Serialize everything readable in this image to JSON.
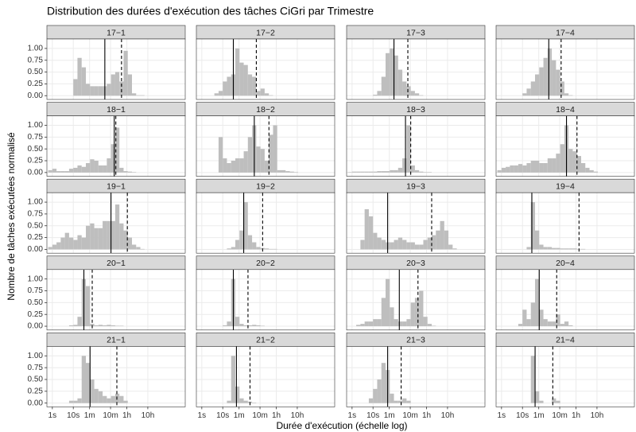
{
  "title": "Distribution des durées d'exécution des tâches CiGri par Trimestre",
  "x_label": "Durée d'exécution (échelle log)",
  "y_label": "Nombre de tâches exécutées normalisé",
  "chart_data": {
    "type": "histogram",
    "xscale": "log",
    "grid": true,
    "color": "#bebebe",
    "xlim": [
      0.55,
      2200000
    ],
    "ylim": [
      -0.08,
      1.2
    ],
    "xticks": [
      {
        "value": 1,
        "label": "1s"
      },
      {
        "value": 10,
        "label": "10s"
      },
      {
        "value": 60,
        "label": "1m"
      },
      {
        "value": 600,
        "label": "10m"
      },
      {
        "value": 3600,
        "label": "1h"
      },
      {
        "value": 36000,
        "label": "10h"
      }
    ],
    "yticks": [
      {
        "value": 0,
        "label": "0.00"
      },
      0.25,
      {
        "value": 0.5,
        "label": "0.50"
      },
      0.75,
      {
        "value": 1,
        "label": "1.00"
      }
    ],
    "bins": [
      0.63,
      1,
      1.58,
      2.51,
      3.98,
      6.31,
      10,
      15.8,
      25.1,
      39.8,
      63.1,
      100,
      158,
      251,
      398,
      631,
      1000,
      1585,
      2512,
      3981,
      6310,
      10000,
      15849,
      25119,
      39811,
      63096,
      100000,
      158489,
      251189,
      398107,
      630957
    ],
    "facets": [
      {
        "title": "17−1",
        "median": 320,
        "mean": 2000,
        "values": [
          0,
          0,
          0,
          0,
          0,
          0,
          0.35,
          0.8,
          0.6,
          0.25,
          0.2,
          0.2,
          0.2,
          0.2,
          0.25,
          0.45,
          0.5,
          0.3,
          0.95,
          0.45,
          0.05,
          0.01,
          0.01,
          0,
          0,
          0,
          0,
          0,
          0,
          0
        ]
      },
      {
        "title": "17−2",
        "median": 32,
        "mean": 400,
        "values": [
          0,
          0,
          0,
          0,
          0.05,
          0.1,
          0.3,
          0.4,
          0.45,
          1,
          0.7,
          0.65,
          0.45,
          0.4,
          0.1,
          0.15,
          0.05,
          0.01,
          0,
          0,
          0,
          0,
          0,
          0,
          0,
          0,
          0,
          0,
          0,
          0
        ]
      },
      {
        "title": "17−3",
        "median": 100,
        "mean": 460,
        "values": [
          0,
          0,
          0,
          0,
          0,
          0,
          0.02,
          0.1,
          0.4,
          0.9,
          1,
          0.85,
          0.55,
          0.3,
          0.2,
          0.1,
          0.05,
          0.01,
          0,
          0,
          0,
          0,
          0,
          0,
          0,
          0,
          0,
          0,
          0,
          0
        ]
      },
      {
        "title": "17−4",
        "median": 180,
        "mean": 700,
        "values": [
          0,
          0,
          0,
          0,
          0,
          0,
          0.05,
          0.15,
          0.3,
          0.45,
          0.6,
          0.8,
          1,
          0.75,
          0.55,
          0.3,
          0.05,
          0.01,
          0,
          0,
          0,
          0,
          0,
          0,
          0,
          0,
          0,
          0,
          0,
          0
        ]
      },
      {
        "title": "18−1",
        "median": 900,
        "mean": 1070,
        "values": [
          0.05,
          0.08,
          0.03,
          0.03,
          0.03,
          0.08,
          0.1,
          0.15,
          0.12,
          0.2,
          0.28,
          0.25,
          0.15,
          0.15,
          0.3,
          0.6,
          0.95,
          0.1,
          0.03,
          0.02,
          0.01,
          0,
          0,
          0,
          0,
          0,
          0,
          0,
          0,
          0
        ]
      },
      {
        "title": "18−2",
        "median": 320,
        "mean": 1600,
        "values": [
          0,
          0,
          0,
          0,
          0,
          0.75,
          0.3,
          0.2,
          0.25,
          0.3,
          0.3,
          0.45,
          0.75,
          1,
          0.55,
          0.5,
          0.25,
          0.8,
          1,
          0.05,
          0.05,
          0.03,
          0.02,
          0.01,
          0,
          0,
          0,
          0,
          0,
          0
        ]
      },
      {
        "title": "18−3",
        "median": 355,
        "mean": 630,
        "values": [
          0.01,
          0.02,
          0.02,
          0.02,
          0.02,
          0.02,
          0.02,
          0.03,
          0.03,
          0.03,
          0.05,
          0.05,
          0.1,
          0.3,
          1,
          0.15,
          0.05,
          0.02,
          0.01,
          0.01,
          0,
          0,
          0,
          0,
          0,
          0,
          0,
          0,
          0,
          0
        ]
      },
      {
        "title": "18−4",
        "median": 1260,
        "mean": 4000,
        "values": [
          0.05,
          0.1,
          0.12,
          0.15,
          0.15,
          0.18,
          0.15,
          0.2,
          0.25,
          0.25,
          0.2,
          0.2,
          0.3,
          0.3,
          0.4,
          0.6,
          1,
          0.5,
          0.45,
          0.35,
          0.2,
          0.1,
          0.05,
          0.02,
          0,
          0,
          0,
          0,
          0,
          0
        ]
      },
      {
        "title": "19−1",
        "median": 630,
        "mean": 3800,
        "values": [
          0.05,
          0.1,
          0.15,
          0.25,
          0.35,
          0.25,
          0.2,
          0.3,
          0.25,
          0.5,
          0.55,
          0.45,
          0.45,
          0.6,
          0.6,
          0.6,
          0.95,
          0.55,
          0.4,
          0.25,
          0.1,
          0.05,
          0.01,
          0,
          0,
          0,
          0,
          0,
          0,
          0
        ]
      },
      {
        "title": "19−2",
        "median": 100,
        "mean": 800,
        "values": [
          0,
          0,
          0,
          0,
          0,
          0,
          0,
          0.02,
          0.05,
          0.2,
          0.4,
          1,
          0.3,
          0.15,
          0.05,
          0.03,
          0.02,
          0.01,
          0.01,
          0,
          0,
          0,
          0,
          0,
          0,
          0,
          0,
          0,
          0,
          0
        ]
      },
      {
        "title": "19−3",
        "median": 50,
        "mean": 6300,
        "values": [
          0,
          0,
          0,
          0.2,
          0.85,
          0.7,
          0.35,
          0.25,
          0.2,
          0.15,
          0.15,
          0.2,
          0.25,
          0.2,
          0.15,
          0.15,
          0.1,
          0.1,
          0.2,
          0.25,
          0.3,
          0.4,
          0.6,
          0.4,
          0.1,
          0.02,
          0,
          0,
          0,
          0
        ]
      },
      {
        "title": "19−4",
        "median": 28,
        "mean": 5000,
        "values": [
          0,
          0,
          0,
          0,
          0,
          0,
          0,
          0.05,
          1,
          0.4,
          0.1,
          0.05,
          0.05,
          0.03,
          0.03,
          0.02,
          0.02,
          0.02,
          0.02,
          0.01,
          0.01,
          0,
          0,
          0,
          0,
          0,
          0,
          0,
          0,
          0
        ]
      },
      {
        "title": "20−1",
        "median": 32,
        "mean": 80,
        "values": [
          0,
          0,
          0,
          0,
          0,
          0.02,
          0.03,
          0.2,
          1,
          0.85,
          0.05,
          0.02,
          0.03,
          0.02,
          0.03,
          0.02,
          0.01,
          0.01,
          0,
          0,
          0,
          0,
          0,
          0,
          0,
          0,
          0,
          0,
          0,
          0
        ]
      },
      {
        "title": "20−2",
        "median": 32,
        "mean": 160,
        "values": [
          0,
          0,
          0,
          0,
          0,
          0,
          0.02,
          0.1,
          1,
          0.2,
          0.05,
          0.02,
          0.02,
          0.03,
          0.02,
          0.01,
          0,
          0,
          0,
          0,
          0,
          0,
          0,
          0,
          0,
          0,
          0,
          0,
          0,
          0
        ]
      },
      {
        "title": "20−3",
        "median": 180,
        "mean": 1400,
        "values": [
          0,
          0,
          0.03,
          0.05,
          0.1,
          0.1,
          0.15,
          0.15,
          0.6,
          1,
          0.4,
          0.15,
          0.1,
          0.1,
          0.15,
          0.5,
          0.6,
          0.75,
          0.2,
          0.05,
          0.01,
          0,
          0,
          0,
          0,
          0,
          0,
          0,
          0,
          0
        ]
      },
      {
        "title": "20−4",
        "median": 63,
        "mean": 430,
        "values": [
          0,
          0,
          0,
          0,
          0,
          0.05,
          0.35,
          0.15,
          0.5,
          1,
          0.35,
          0.15,
          0.1,
          0.1,
          0.25,
          0.05,
          0.1,
          0.02,
          0,
          0,
          0,
          0,
          0,
          0,
          0,
          0,
          0,
          0,
          0,
          0
        ]
      },
      {
        "title": "21−1",
        "median": 63,
        "mean": 1200,
        "values": [
          0,
          0,
          0,
          0,
          0,
          0.05,
          0.05,
          0.1,
          1,
          0.85,
          0.5,
          0.3,
          0.25,
          0.15,
          0.1,
          0.15,
          0.2,
          0.15,
          0.05,
          0,
          0,
          0,
          0,
          0,
          0,
          0,
          0,
          0,
          0,
          0
        ]
      },
      {
        "title": "21−2",
        "median": 45,
        "mean": 200,
        "values": [
          0,
          0,
          0,
          0,
          0,
          0,
          0,
          0.05,
          1,
          0.35,
          0.1,
          0.05,
          0.03,
          0.01,
          0,
          0,
          0,
          0,
          0,
          0,
          0,
          0,
          0,
          0,
          0,
          0,
          0,
          0,
          0,
          0
        ]
      },
      {
        "title": "21−3",
        "median": 50,
        "mean": 220,
        "values": [
          0,
          0,
          0,
          0,
          0,
          0.1,
          0.3,
          0.5,
          0.85,
          0.7,
          0.2,
          0.05,
          0.05,
          0.1,
          0.05,
          0,
          0,
          0,
          0,
          0,
          0,
          0,
          0,
          0,
          0,
          0,
          0,
          0,
          0,
          0
        ]
      },
      {
        "title": "21−4",
        "median": 40,
        "mean": 280,
        "values": [
          0,
          0,
          0,
          0,
          0,
          0,
          0,
          0,
          1,
          0.25,
          0.05,
          0,
          0,
          0.1,
          0.05,
          0,
          0,
          0,
          0,
          0,
          0,
          0,
          0,
          0,
          0,
          0,
          0,
          0,
          0,
          0
        ]
      }
    ]
  }
}
